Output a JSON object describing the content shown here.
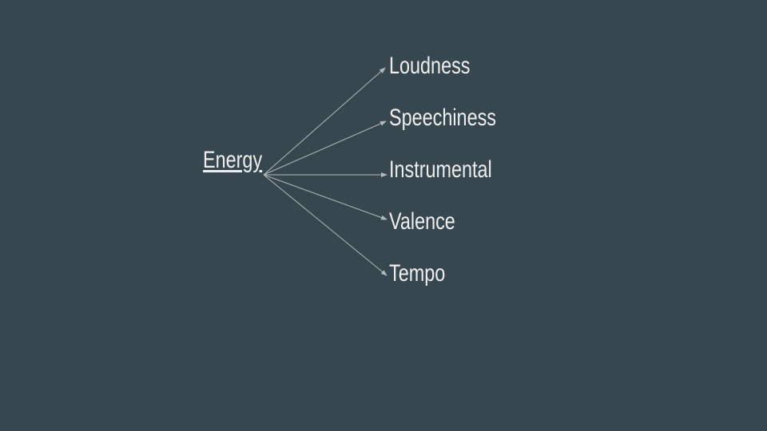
{
  "diagram": {
    "root": "Energy",
    "children": [
      "Loudness",
      "Speechiness",
      "Instrumental",
      "Valence",
      "Tempo"
    ]
  },
  "colors": {
    "background": "#37474f",
    "text": "#eeeeee",
    "arrow": "#b0b8bc"
  }
}
